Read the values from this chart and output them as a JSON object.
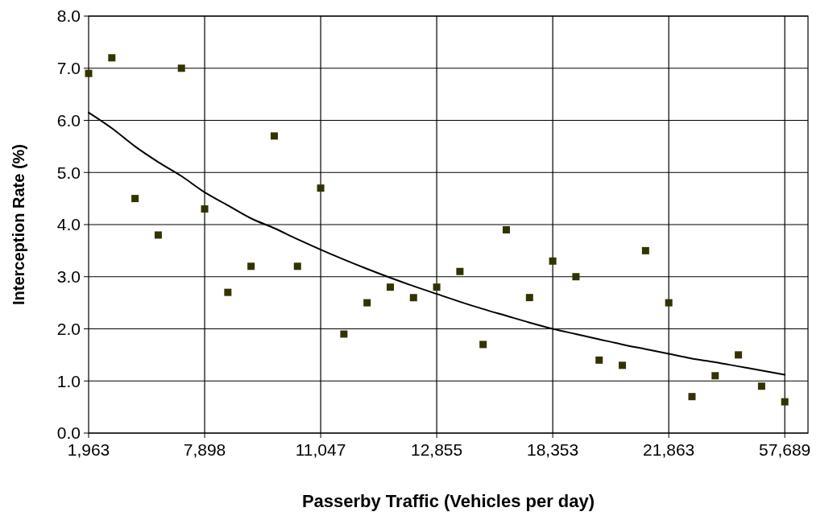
{
  "chart_data": {
    "type": "scatter",
    "xlabel": "Passerby Traffic (Vehicles per day)",
    "ylabel": "Interception Rate (%)",
    "categories": [
      "1,963",
      null,
      null,
      null,
      null,
      "7,898",
      null,
      null,
      null,
      null,
      "11,047",
      null,
      null,
      null,
      null,
      "12,855",
      null,
      null,
      null,
      null,
      "18,353",
      null,
      null,
      null,
      null,
      "21,863",
      null,
      null,
      null,
      null,
      "57,689"
    ],
    "series": [
      {
        "type": "scatter",
        "color": "#333300",
        "marker": "square",
        "values": [
          6.9,
          7.2,
          4.5,
          3.8,
          7.0,
          4.3,
          2.7,
          3.2,
          5.7,
          3.2,
          4.7,
          1.9,
          2.5,
          2.8,
          2.6,
          2.8,
          3.1,
          1.7,
          3.9,
          2.6,
          3.3,
          3.0,
          1.4,
          1.3,
          3.5,
          2.5,
          0.7,
          1.1,
          1.5,
          0.9,
          0.6
        ]
      },
      {
        "type": "line",
        "color": "#000000",
        "marker": "none",
        "line_style": "solid",
        "values": [
          6.15,
          5.85,
          5.5,
          5.2,
          4.93,
          4.62,
          4.37,
          4.12,
          3.93,
          3.72,
          3.52,
          3.33,
          3.15,
          2.98,
          2.82,
          2.67,
          2.52,
          2.38,
          2.25,
          2.12,
          2.0,
          1.9,
          1.8,
          1.7,
          1.61,
          1.52,
          1.43,
          1.36,
          1.28,
          1.2,
          1.12
        ]
      }
    ],
    "ylim": [
      0,
      8
    ],
    "yticks": [
      {
        "value": 0,
        "label": "0.0"
      },
      {
        "value": 1,
        "label": "1.0"
      },
      {
        "value": 2,
        "label": "2.0"
      },
      {
        "value": 3,
        "label": "3.0"
      },
      {
        "value": 4,
        "label": "4.0"
      },
      {
        "value": 5,
        "label": "5.0"
      },
      {
        "value": 6,
        "label": "6.0"
      },
      {
        "value": 7,
        "label": "7.0"
      },
      {
        "value": 8,
        "label": "8.0"
      }
    ],
    "grid": true
  }
}
